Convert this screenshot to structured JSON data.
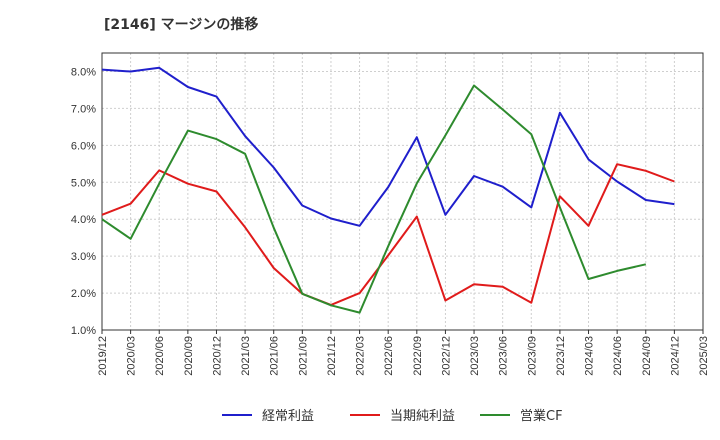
{
  "title": "[2146]  マージンの推移",
  "chart_data": {
    "type": "line",
    "x": [
      "2019/12",
      "2020/03",
      "2020/06",
      "2020/09",
      "2020/12",
      "2021/03",
      "2021/06",
      "2021/09",
      "2021/12",
      "2022/03",
      "2022/06",
      "2022/09",
      "2022/12",
      "2023/03",
      "2023/06",
      "2023/09",
      "2023/12",
      "2024/03",
      "2024/06",
      "2024/09",
      "2024/12",
      "2025/03"
    ],
    "yticks": [
      "1.0%",
      "2.0%",
      "3.0%",
      "4.0%",
      "5.0%",
      "6.0%",
      "7.0%",
      "8.0%"
    ],
    "ylim": [
      1.0,
      8.5
    ],
    "grid": true,
    "legend_position": "bottom",
    "series": [
      {
        "name": "経常利益",
        "color": "#1f1fcc",
        "values": [
          8.05,
          8.0,
          8.1,
          7.58,
          7.32,
          6.25,
          5.4,
          4.37,
          4.02,
          3.82,
          4.87,
          6.22,
          4.12,
          5.17,
          4.88,
          4.32,
          6.88,
          5.62,
          5.02,
          4.52,
          4.41,
          null
        ]
      },
      {
        "name": "当期純利益",
        "color": "#e01b1b",
        "values": [
          4.12,
          4.42,
          5.32,
          4.96,
          4.75,
          3.78,
          2.68,
          1.98,
          1.68,
          2.0,
          3.02,
          4.07,
          1.8,
          2.24,
          2.17,
          1.74,
          4.62,
          3.82,
          5.49,
          5.31,
          5.02,
          null
        ]
      },
      {
        "name": "営業CF",
        "color": "#2e8b2e",
        "values": [
          4.0,
          3.47,
          4.96,
          6.4,
          6.17,
          5.77,
          3.77,
          1.98,
          1.67,
          1.47,
          3.27,
          4.97,
          6.27,
          7.62,
          6.97,
          6.3,
          4.32,
          2.38,
          2.6,
          2.78,
          null,
          null
        ]
      }
    ]
  }
}
